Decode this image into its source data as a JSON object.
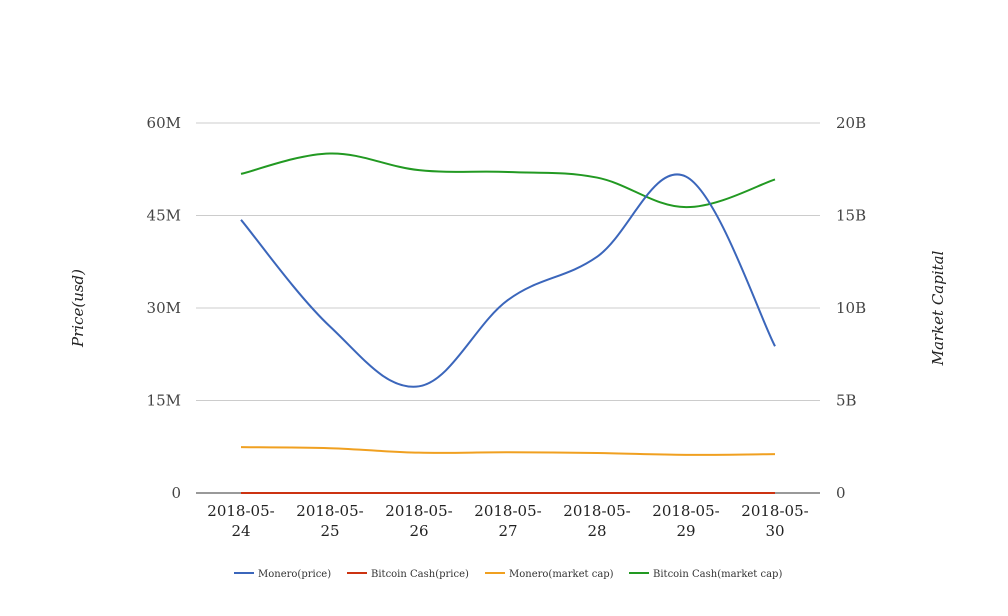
{
  "chart_data": {
    "type": "line",
    "categories": [
      [
        "2018-05-",
        "24"
      ],
      [
        "2018-05-",
        "25"
      ],
      [
        "2018-05-",
        "26"
      ],
      [
        "2018-05-",
        "27"
      ],
      [
        "2018-05-",
        "28"
      ],
      [
        "2018-05-",
        "29"
      ],
      [
        "2018-05-",
        "30"
      ]
    ],
    "y_left": {
      "label": "Price(usd)",
      "range": [
        0,
        60000000
      ],
      "ticks": [
        {
          "value": 0,
          "label": "0"
        },
        {
          "value": 15000000,
          "label": "15M"
        },
        {
          "value": 30000000,
          "label": "30M"
        },
        {
          "value": 45000000,
          "label": "45M"
        },
        {
          "value": 60000000,
          "label": "60M"
        }
      ]
    },
    "y_right": {
      "label": "Market Capital",
      "range": [
        0,
        20000000000
      ],
      "ticks": [
        {
          "value": 0,
          "label": "0"
        },
        {
          "value": 5000000000,
          "label": "5B"
        },
        {
          "value": 10000000000,
          "label": "10B"
        },
        {
          "value": 15000000000,
          "label": "15B"
        },
        {
          "value": 20000000000,
          "label": "20B"
        }
      ]
    },
    "grid": true,
    "legend_position": "bottom",
    "series": [
      {
        "name": "Monero(price)",
        "axis": "left",
        "color": "#3b66bb",
        "values": [
          44300000,
          27000000,
          17300000,
          31300000,
          38300000,
          51300000,
          23800000
        ]
      },
      {
        "name": "Bitcoin Cash(price)",
        "axis": "left",
        "color": "#cc3311",
        "values": [
          1350,
          1250,
          1100,
          1150,
          1150,
          1000,
          1100
        ]
      },
      {
        "name": "Monero(market cap)",
        "axis": "right",
        "color": "#f0a020",
        "values": [
          2480000000,
          2420000000,
          2180000000,
          2200000000,
          2160000000,
          2060000000,
          2100000000
        ]
      },
      {
        "name": "Bitcoin Cash(market cap)",
        "axis": "right",
        "color": "#229922",
        "values": [
          17250000000,
          18350000000,
          17450000000,
          17350000000,
          17050000000,
          15450000000,
          16950000000
        ]
      }
    ]
  }
}
